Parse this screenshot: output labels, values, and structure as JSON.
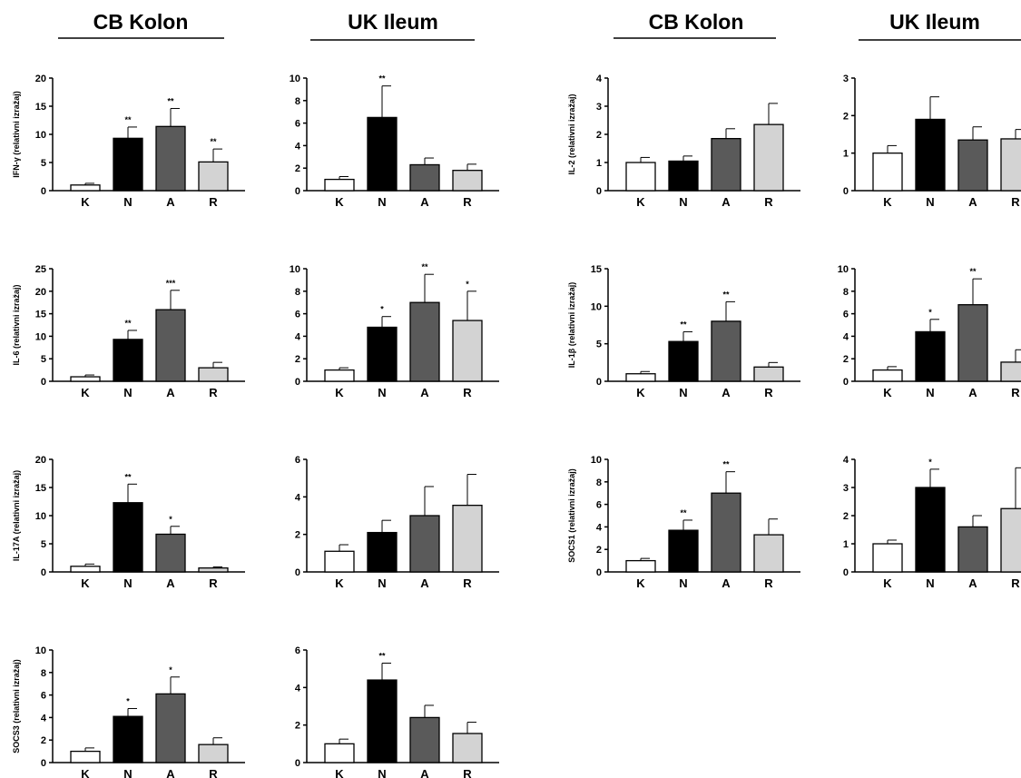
{
  "column_headers": [
    "CB Kolon",
    "UK Ileum",
    "CB Kolon",
    "UK Ileum"
  ],
  "colors": {
    "K": "#ffffff",
    "N": "#000000",
    "A": "#5a5a5a",
    "R": "#d3d3d3",
    "stroke": "#000000"
  },
  "chart_data": [
    {
      "type": "bar",
      "ylabel": "IFN-γ (relativni izražaj)",
      "categories": [
        "K",
        "N",
        "A",
        "R"
      ],
      "values": [
        1.0,
        9.3,
        11.4,
        5.1
      ],
      "errors": [
        0.3,
        2.0,
        3.2,
        2.3
      ],
      "significance": [
        "",
        "**",
        "**",
        "**"
      ],
      "ylim": [
        0,
        20
      ],
      "yticks": [
        0,
        5,
        10,
        15,
        20
      ]
    },
    {
      "type": "bar",
      "ylabel": "",
      "categories": [
        "K",
        "N",
        "A",
        "R"
      ],
      "values": [
        1.0,
        6.5,
        2.3,
        1.8
      ],
      "errors": [
        0.25,
        2.8,
        0.6,
        0.55
      ],
      "significance": [
        "",
        "**",
        "",
        ""
      ],
      "ylim": [
        0,
        10
      ],
      "yticks": [
        0,
        2,
        4,
        6,
        8,
        10
      ]
    },
    {
      "type": "bar",
      "ylabel": "IL-2 (relativni izražaj)",
      "categories": [
        "K",
        "N",
        "A",
        "R"
      ],
      "values": [
        1.0,
        1.05,
        1.85,
        2.35
      ],
      "errors": [
        0.18,
        0.18,
        0.35,
        0.75
      ],
      "significance": [
        "",
        "",
        "",
        ""
      ],
      "ylim": [
        0,
        4
      ],
      "yticks": [
        0,
        1,
        2,
        3,
        4
      ]
    },
    {
      "type": "bar",
      "ylabel": "",
      "categories": [
        "K",
        "N",
        "A",
        "R"
      ],
      "values": [
        1.0,
        1.9,
        1.35,
        1.38
      ],
      "errors": [
        0.2,
        0.6,
        0.35,
        0.25
      ],
      "significance": [
        "",
        "",
        "",
        ""
      ],
      "ylim": [
        0,
        3
      ],
      "yticks": [
        0,
        1,
        2,
        3
      ]
    },
    {
      "type": "bar",
      "ylabel": "IL-6 (relativni izražaj)",
      "categories": [
        "K",
        "N",
        "A",
        "R"
      ],
      "values": [
        1.0,
        9.3,
        15.9,
        3.0
      ],
      "errors": [
        0.4,
        2.0,
        4.3,
        1.2
      ],
      "significance": [
        "",
        "**",
        "***",
        ""
      ],
      "ylim": [
        0,
        25
      ],
      "yticks": [
        0,
        5,
        10,
        15,
        20,
        25
      ]
    },
    {
      "type": "bar",
      "ylabel": "",
      "categories": [
        "K",
        "N",
        "A",
        "R"
      ],
      "values": [
        1.0,
        4.8,
        7.0,
        5.4
      ],
      "errors": [
        0.2,
        0.95,
        2.5,
        2.6
      ],
      "significance": [
        "",
        "*",
        "**",
        "*"
      ],
      "ylim": [
        0,
        10
      ],
      "yticks": [
        0,
        2,
        4,
        6,
        8,
        10
      ]
    },
    {
      "type": "bar",
      "ylabel": "IL-1β (relativni izražaj)",
      "categories": [
        "K",
        "N",
        "A",
        "R"
      ],
      "values": [
        1.0,
        5.3,
        8.0,
        1.9
      ],
      "errors": [
        0.3,
        1.3,
        2.6,
        0.6
      ],
      "significance": [
        "",
        "**",
        "**",
        ""
      ],
      "ylim": [
        0,
        15
      ],
      "yticks": [
        0,
        5,
        10,
        15
      ]
    },
    {
      "type": "bar",
      "ylabel": "",
      "categories": [
        "K",
        "N",
        "A",
        "R"
      ],
      "values": [
        1.0,
        4.4,
        6.8,
        1.7
      ],
      "errors": [
        0.3,
        1.1,
        2.3,
        1.1
      ],
      "significance": [
        "",
        "*",
        "**",
        ""
      ],
      "ylim": [
        0,
        10
      ],
      "yticks": [
        0,
        2,
        4,
        6,
        8,
        10
      ]
    },
    {
      "type": "bar",
      "ylabel": "IL-17A (relativni izražaj)",
      "categories": [
        "K",
        "N",
        "A",
        "R"
      ],
      "values": [
        1.0,
        12.3,
        6.7,
        0.7
      ],
      "errors": [
        0.4,
        3.3,
        1.4,
        0.2
      ],
      "significance": [
        "",
        "**",
        "*",
        ""
      ],
      "ylim": [
        0,
        20
      ],
      "yticks": [
        0,
        5,
        10,
        15,
        20
      ]
    },
    {
      "type": "bar",
      "ylabel": "",
      "categories": [
        "K",
        "N",
        "A",
        "R"
      ],
      "values": [
        1.1,
        2.1,
        3.0,
        3.55
      ],
      "errors": [
        0.35,
        0.65,
        1.55,
        1.65
      ],
      "significance": [
        "",
        "",
        "",
        ""
      ],
      "ylim": [
        0,
        6
      ],
      "yticks": [
        0,
        2,
        4,
        6
      ]
    },
    {
      "type": "bar",
      "ylabel": "SOCS1 (relativni izražaj)",
      "categories": [
        "K",
        "N",
        "A",
        "R"
      ],
      "values": [
        1.0,
        3.7,
        7.0,
        3.3
      ],
      "errors": [
        0.2,
        0.9,
        1.9,
        1.4
      ],
      "significance": [
        "",
        "**",
        "**",
        ""
      ],
      "ylim": [
        0,
        10
      ],
      "yticks": [
        0,
        2,
        4,
        6,
        8,
        10
      ]
    },
    {
      "type": "bar",
      "ylabel": "",
      "categories": [
        "K",
        "N",
        "A",
        "R"
      ],
      "values": [
        1.0,
        3.0,
        1.6,
        2.25
      ],
      "errors": [
        0.13,
        0.65,
        0.4,
        1.45
      ],
      "significance": [
        "",
        "*",
        "",
        ""
      ],
      "ylim": [
        0,
        4
      ],
      "yticks": [
        0,
        1,
        2,
        3,
        4
      ]
    },
    {
      "type": "bar",
      "ylabel": "SOCS3 (relativni izražaj)",
      "categories": [
        "K",
        "N",
        "A",
        "R"
      ],
      "values": [
        1.0,
        4.1,
        6.1,
        1.6
      ],
      "errors": [
        0.3,
        0.7,
        1.5,
        0.6
      ],
      "significance": [
        "",
        "*",
        "*",
        ""
      ],
      "ylim": [
        0,
        10
      ],
      "yticks": [
        0,
        2,
        4,
        6,
        8,
        10
      ]
    },
    {
      "type": "bar",
      "ylabel": "",
      "categories": [
        "K",
        "N",
        "A",
        "R"
      ],
      "values": [
        1.0,
        4.4,
        2.4,
        1.55
      ],
      "errors": [
        0.25,
        0.9,
        0.65,
        0.6
      ],
      "significance": [
        "",
        "**",
        "",
        ""
      ],
      "ylim": [
        0,
        6
      ],
      "yticks": [
        0,
        2,
        4,
        6
      ]
    }
  ]
}
